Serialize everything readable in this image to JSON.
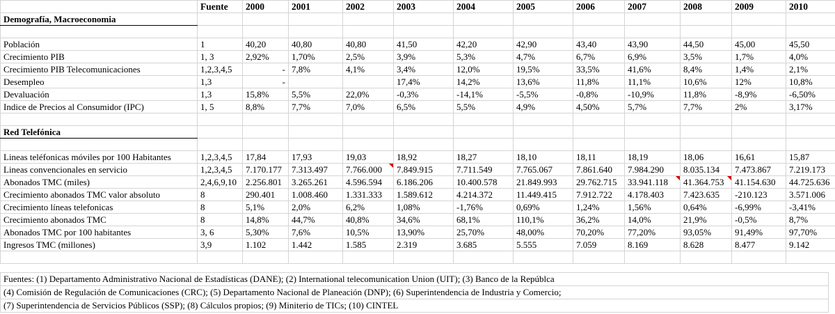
{
  "headers": [
    "Fuente",
    "2000",
    "2001",
    "2002",
    "2003",
    "2004",
    "2005",
    "2006",
    "2007",
    "2008",
    "2009",
    "2010"
  ],
  "sections": [
    {
      "title": "Demografía, Macroeconomia",
      "rows": [
        {
          "label": "Población",
          "source": "1",
          "values": [
            "40,20",
            "40,80",
            "40,80",
            "41,50",
            "42,20",
            "42,90",
            "43,40",
            "43,90",
            "44,50",
            "45,00",
            "45,50"
          ]
        },
        {
          "label": "Crecimiento PIB",
          "source": " 1, 3",
          "values": [
            "2,92%",
            "1,70%",
            "2,5%",
            "3,9%",
            "5,3%",
            "4,7%",
            "6,7%",
            "6,9%",
            "3,5%",
            "1,7%",
            "4,0%"
          ]
        },
        {
          "label": "Crecimiento PIB Telecomunicaciones",
          "source": "1,2,3,4,5",
          "values": [
            "-",
            "7,8%",
            "4,1%",
            "3,4%",
            "12,0%",
            "19,5%",
            "33,5%",
            "41,6%",
            "8,4%",
            "1,4%",
            "2,1%"
          ]
        },
        {
          "label": "Desempleo",
          "source": "1,3",
          "values": [
            "-",
            "",
            "",
            "17,4%",
            "14,2%",
            "13,6%",
            "11,8%",
            "11,1%",
            "10,6%",
            "12%",
            "10,8%"
          ]
        },
        {
          "label": "Devaluación",
          "source": "1,3",
          "values": [
            "15,8%",
            "5,5%",
            "22,0%",
            "-0,3%",
            "-14,1%",
            "-5,5%",
            "-0,8%",
            "-10,9%",
            "11,8%",
            "-8,9%",
            "-6,50%"
          ]
        },
        {
          "label": "Indice de Precios al Consumidor (IPC)",
          "source": "1, 5",
          "values": [
            "8,8%",
            "7,7%",
            "7,0%",
            "6,5%",
            "5,5%",
            "4,9%",
            "4,50%",
            "5,7%",
            "7,7%",
            "2%",
            "3,17%"
          ]
        }
      ]
    },
    {
      "title": "Red Telefónica",
      "rows": [
        {
          "label": "Lineas teléfonicas móviles por 100 Habitantes",
          "source": "1,2,3,4,5",
          "values": [
            "17,84",
            "17,93",
            "19,03",
            "18,92",
            "18,27",
            "18,10",
            "18,11",
            "18,19",
            "18,06",
            "16,61",
            "15,87"
          ]
        },
        {
          "label": "Lineas convencionales en servicio",
          "source": "1,2,3,4,5",
          "values": [
            "7.170.177",
            "7.313.497",
            "7.766.000",
            "7.849.915",
            "7.711.549",
            "7.765.067",
            "7.861.640",
            "7.984.290",
            "8.035.134",
            "7.473.867",
            "7.219.173"
          ]
        },
        {
          "label": "Abonados TMC (miles)",
          "source": "2,4,6,9,10",
          "values": [
            "2.256.801",
            "3.265.261",
            "4.596.594",
            "6.186.206",
            "10.400.578",
            "21.849.993",
            "29.762.715",
            "33.941.118",
            "41.364.753",
            "41.154.630",
            "44.725.636"
          ]
        },
        {
          "label": "Crecimiento abonados TMC valor absoluto",
          "source": "8",
          "values": [
            "290.401",
            "1.008.460",
            "1.331.333",
            "1.589.612",
            "4.214.372",
            "11.449.415",
            "7.912.722",
            "4.178.403",
            "7.423.635",
            "-210.123",
            "3.571.006"
          ]
        },
        {
          "label": "Crecimiento líneas telefonicas",
          "source": "8",
          "values": [
            "5,1%",
            "2,0%",
            "6,2%",
            "1,08%",
            "-1,76%",
            "0,69%",
            "1,24%",
            "1,56%",
            "0,64%",
            "-6,99%",
            "-3,41%"
          ]
        },
        {
          "label": "Crecimiento abonados TMC",
          "source": "8",
          "values": [
            "14,8%",
            "44,7%",
            "40,8%",
            "34,6%",
            "68,1%",
            "110,1%",
            "36,2%",
            "14,0%",
            "21,9%",
            "-0,5%",
            "8,7%"
          ]
        },
        {
          "label": "Abonados TMC por 100 habitantes",
          "source": "3, 6",
          "values": [
            "5,30%",
            "7,6%",
            "10,5%",
            "13,90%",
            "25,70%",
            "48,00%",
            "70,20%",
            "77,20%",
            "93,05%",
            "91,49%",
            "97,70%"
          ]
        },
        {
          "label": "Ingresos TMC (millones)",
          "source": "3,9",
          "values": [
            "1.102",
            "1.442",
            "1.585",
            "2.319",
            "3.685",
            "5.555",
            "7.059",
            "8.169",
            "8.628",
            "8.477",
            "9.142"
          ]
        }
      ]
    }
  ],
  "footnotes": [
    "Fuentes: (1) Departamento Administrativo Nacional de Estadísticas (DANE); (2) International telecomunication Union (UIT); (3) Banco de la Repúblca",
    "(4) Comisión de Regulación de Comunicaciones (CRC); (5) Departamento Nacional de Planeación (DNP); (6) Superintendencia de Industria y Comercio;",
    "(7) Superintendencia de Servicios Públicos (SSP); (8) Cálculos propios; (9) Miniterio de TICs; (10) CINTEL"
  ]
}
